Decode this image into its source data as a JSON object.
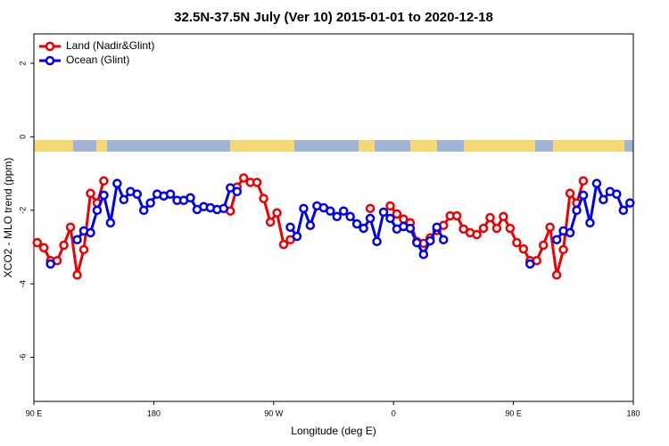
{
  "chart_data": {
    "type": "line",
    "title": "32.5N-37.5N July (Ver 10)   2015-01-01 to 2020-12-18",
    "xlabel": "Longitude (deg E)",
    "ylabel": "XCO2 - MLO trend (ppm)",
    "xlim": [
      90,
      540
    ],
    "xticks": [
      {
        "value": 90,
        "label": "90 E"
      },
      {
        "value": 180,
        "label": "180"
      },
      {
        "value": 270,
        "label": "90 W"
      },
      {
        "value": 360,
        "label": "0"
      },
      {
        "value": 450,
        "label": "90 E"
      },
      {
        "value": 540,
        "label": "180"
      }
    ],
    "ylim": [
      -7.2,
      2.8
    ],
    "yticks": [
      2,
      0,
      -2,
      -4,
      -6
    ],
    "legend": "top-left",
    "series": [
      {
        "name": "Land (Nadir&Glint)",
        "color": "#ee0000",
        "x": [
          92.5,
          97.5,
          102.5,
          107.5,
          112.5,
          117.5,
          122.5,
          127.5,
          132.5,
          137.5,
          142.5,
          147.5,
          237.5,
          242.5,
          247.5,
          252.5,
          257.5,
          262.5,
          267.5,
          272.5,
          277.5,
          282.5,
          287.5,
          342.5,
          347.5,
          357.5,
          362.5,
          367.5,
          372.5,
          377.5,
          382.5,
          387.5,
          392.5,
          397.5,
          402.5,
          407.5,
          412.5,
          417.5,
          422.5,
          427.5,
          432.5,
          437.5,
          442.5,
          447.5,
          452.5,
          457.5,
          462.5,
          467.5,
          472.5,
          477.5,
          482.5,
          487.5,
          492.5,
          497.5,
          502.5
        ],
        "values": [
          -2.88,
          -3.02,
          -3.37,
          -3.37,
          -2.95,
          -2.46,
          -3.76,
          -3.07,
          -1.54,
          -1.8,
          -1.2,
          null,
          -2.02,
          -1.37,
          -1.12,
          -1.24,
          -1.24,
          -1.68,
          -2.32,
          -2.07,
          -2.93,
          -2.8,
          null,
          -1.95,
          null,
          -1.88,
          -2.1,
          -2.24,
          -2.34,
          -2.85,
          -2.9,
          -2.75,
          -2.55,
          -2.41,
          -2.15,
          -2.15,
          -2.51,
          -2.61,
          -2.66,
          -2.49,
          -2.2,
          -2.49,
          -2.17,
          -2.49,
          -2.88,
          -3.05,
          -3.37,
          -3.37,
          -2.95,
          -2.46,
          -3.76,
          -3.07,
          -1.54,
          -1.8,
          -1.2
        ]
      },
      {
        "name": "Ocean (Glint)",
        "color": "#0000ee",
        "x": [
          102.5,
          107.5,
          122.5,
          127.5,
          132.5,
          137.5,
          142.5,
          147.5,
          152.5,
          157.5,
          162.5,
          167.5,
          172.5,
          177.5,
          182.5,
          187.5,
          192.5,
          197.5,
          202.5,
          207.5,
          212.5,
          217.5,
          222.5,
          227.5,
          232.5,
          237.5,
          242.5,
          247.5,
          282.5,
          287.5,
          292.5,
          297.5,
          302.5,
          307.5,
          312.5,
          317.5,
          322.5,
          327.5,
          332.5,
          337.5,
          342.5,
          347.5,
          352.5,
          357.5,
          362.5,
          367.5,
          372.5,
          377.5,
          382.5,
          387.5,
          392.5,
          397.5,
          402.5,
          462.5,
          467.5,
          482.5,
          487.5,
          492.5,
          497.5,
          502.5,
          507.5,
          512.5,
          517.5,
          522.5,
          527.5,
          532.5,
          537.5
        ],
        "values": [
          -3.46,
          null,
          -2.8,
          -2.56,
          -2.61,
          -2.0,
          -1.59,
          -2.34,
          -1.27,
          -1.71,
          -1.49,
          -1.56,
          -2.0,
          -1.8,
          -1.56,
          -1.61,
          -1.56,
          -1.73,
          -1.73,
          -1.66,
          -1.98,
          -1.9,
          -1.93,
          -1.98,
          -1.95,
          -1.39,
          -1.49,
          null,
          -2.46,
          -2.71,
          -1.95,
          -2.41,
          -1.88,
          -1.93,
          -2.02,
          -2.17,
          -2.02,
          -2.17,
          -2.37,
          -2.49,
          -2.22,
          -2.85,
          -2.05,
          -2.22,
          -2.51,
          -2.44,
          -2.49,
          -2.88,
          -3.2,
          -2.83,
          -2.46,
          -2.8,
          null,
          -3.46,
          null,
          -2.8,
          -2.56,
          -2.61,
          -2.0,
          -1.59,
          -2.34,
          -1.27,
          -1.71,
          -1.49,
          -1.56,
          -2.0,
          -1.8
        ]
      }
    ]
  }
}
